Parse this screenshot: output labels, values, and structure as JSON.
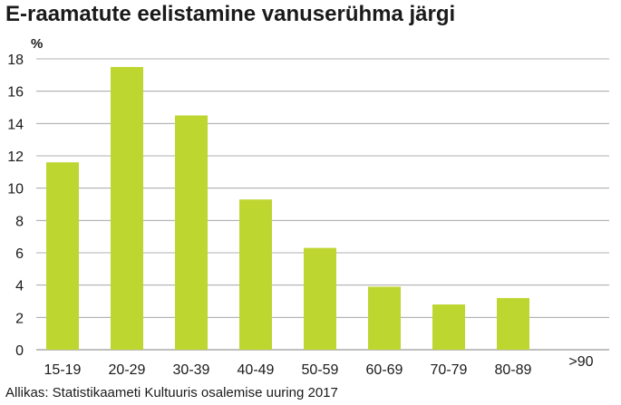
{
  "title": "E-raamatute eelistamine vanuserühma järgi",
  "source": "Allikas: Statistikaameti Kultuuris osalemise uuring 2017",
  "chart_data": {
    "type": "bar",
    "title": "E-raamatute eelistamine vanuserühma järgi",
    "ylabel": "%",
    "xlabel": "",
    "categories": [
      "15-19",
      "20-29",
      "30-39",
      "40-49",
      "50-59",
      "60-69",
      "70-79",
      "80-89",
      ">90"
    ],
    "values": [
      11.6,
      17.5,
      14.5,
      9.3,
      6.3,
      3.9,
      2.8,
      3.2,
      0
    ],
    "ylim": [
      0,
      18
    ],
    "yticks": [
      0,
      2,
      4,
      6,
      8,
      10,
      12,
      14,
      16,
      18
    ],
    "grid": true,
    "bar_color": "#bed630",
    "grid_color": "#999999"
  }
}
